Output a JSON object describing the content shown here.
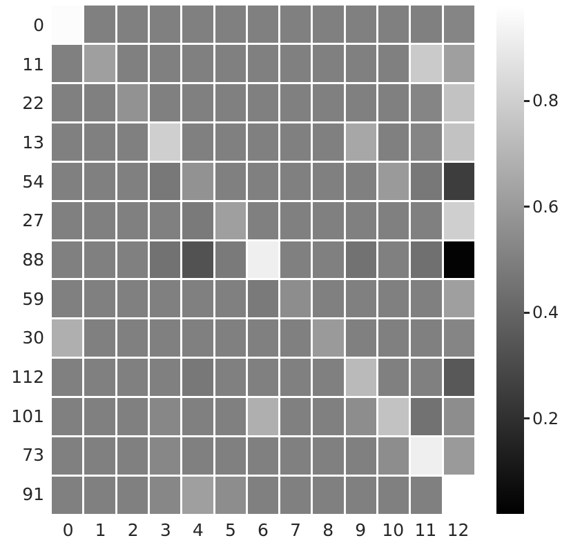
{
  "chart_data": {
    "type": "heatmap",
    "title": "",
    "xlabel": "",
    "ylabel": "",
    "rows": [
      "0",
      "11",
      "22",
      "13",
      "54",
      "27",
      "88",
      "59",
      "30",
      "112",
      "101",
      "73",
      "91"
    ],
    "columns": [
      "0",
      "1",
      "2",
      "3",
      "4",
      "5",
      "6",
      "7",
      "8",
      "9",
      "10",
      "11",
      "12"
    ],
    "values": [
      [
        0.97,
        0.5,
        0.5,
        0.5,
        0.5,
        0.5,
        0.5,
        0.5,
        0.5,
        0.5,
        0.5,
        0.5,
        0.52
      ],
      [
        0.5,
        0.62,
        0.5,
        0.5,
        0.5,
        0.5,
        0.5,
        0.5,
        0.5,
        0.5,
        0.5,
        0.78,
        0.62
      ],
      [
        0.5,
        0.5,
        0.57,
        0.5,
        0.5,
        0.5,
        0.5,
        0.5,
        0.5,
        0.5,
        0.5,
        0.52,
        0.75
      ],
      [
        0.5,
        0.5,
        0.5,
        0.8,
        0.5,
        0.5,
        0.5,
        0.5,
        0.5,
        0.65,
        0.5,
        0.52,
        0.75
      ],
      [
        0.5,
        0.5,
        0.5,
        0.47,
        0.57,
        0.5,
        0.5,
        0.5,
        0.5,
        0.5,
        0.6,
        0.47,
        0.25
      ],
      [
        0.5,
        0.5,
        0.5,
        0.5,
        0.48,
        0.62,
        0.5,
        0.5,
        0.5,
        0.5,
        0.5,
        0.5,
        0.8
      ],
      [
        0.5,
        0.5,
        0.5,
        0.45,
        0.33,
        0.48,
        0.92,
        0.5,
        0.5,
        0.45,
        0.5,
        0.44,
        0.03
      ],
      [
        0.5,
        0.5,
        0.5,
        0.5,
        0.5,
        0.5,
        0.48,
        0.55,
        0.5,
        0.5,
        0.5,
        0.5,
        0.62
      ],
      [
        0.68,
        0.5,
        0.5,
        0.5,
        0.5,
        0.5,
        0.5,
        0.5,
        0.6,
        0.5,
        0.5,
        0.5,
        0.52
      ],
      [
        0.5,
        0.5,
        0.5,
        0.5,
        0.47,
        0.5,
        0.5,
        0.5,
        0.5,
        0.72,
        0.5,
        0.5,
        0.35
      ],
      [
        0.5,
        0.5,
        0.5,
        0.53,
        0.5,
        0.5,
        0.68,
        0.5,
        0.5,
        0.55,
        0.75,
        0.45,
        0.55
      ],
      [
        0.5,
        0.5,
        0.5,
        0.53,
        0.5,
        0.5,
        0.5,
        0.5,
        0.5,
        0.5,
        0.55,
        0.92,
        0.6
      ],
      [
        0.5,
        0.5,
        0.5,
        0.53,
        0.62,
        0.55,
        0.5,
        0.5,
        0.5,
        0.5,
        0.5,
        0.5,
        null
      ]
    ],
    "colormap": "gray",
    "vmin": 0.02,
    "vmax": 0.98,
    "grid": true,
    "gridline_color": "#ffffff",
    "legend_position": "right-colorbar",
    "colorbar": {
      "tick_labels": [
        "0.8",
        "0.6",
        "0.4",
        "0.2"
      ],
      "tick_values": [
        0.8,
        0.6,
        0.4,
        0.2
      ],
      "top_color": "#ffffff",
      "bottom_color": "#000000"
    },
    "masked_cells": [
      [
        12,
        12
      ]
    ],
    "text_color": "#262626"
  }
}
